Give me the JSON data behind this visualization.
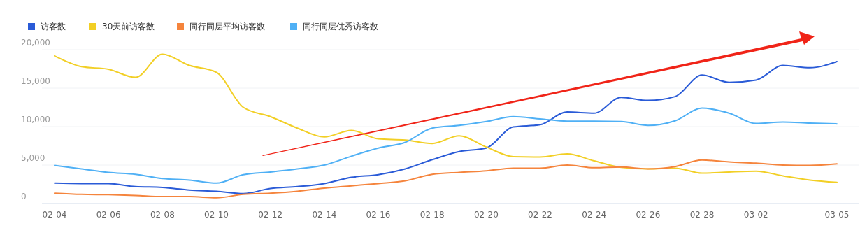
{
  "chart_data": {
    "type": "line",
    "categories": [
      "02-04",
      null,
      "02-06",
      null,
      "02-08",
      null,
      "02-10",
      null,
      "02-12",
      null,
      "02-14",
      null,
      "02-16",
      null,
      "02-18",
      null,
      "02-20",
      null,
      "02-22",
      null,
      "02-24",
      null,
      "02-26",
      null,
      "02-28",
      null,
      "03-02",
      null,
      null,
      "03-05"
    ],
    "series": [
      {
        "name": "访客数",
        "color": "#2a5bd7",
        "values": [
          2650,
          2600,
          2600,
          2200,
          2100,
          1750,
          1600,
          1300,
          1950,
          2200,
          2600,
          3400,
          3750,
          4500,
          5700,
          6750,
          7200,
          9950,
          10250,
          11900,
          11750,
          13800,
          13400,
          13900,
          16700,
          15750,
          16050,
          17950,
          17650,
          18450
        ]
      },
      {
        "name": "30天前访客数",
        "color": "#f2cf25",
        "values": [
          19200,
          17800,
          17450,
          16400,
          19400,
          17950,
          17050,
          12500,
          11300,
          9800,
          8650,
          9500,
          8400,
          8250,
          7800,
          8800,
          7350,
          6100,
          6050,
          6450,
          5550,
          4700,
          4500,
          4600,
          3950,
          4100,
          4200,
          3600,
          3050,
          2750
        ]
      },
      {
        "name": "同行同层平均访客数",
        "color": "#f5843c",
        "values": [
          1350,
          1200,
          1150,
          1050,
          900,
          900,
          750,
          1200,
          1350,
          1600,
          2000,
          2300,
          2600,
          2950,
          3800,
          4050,
          4250,
          4600,
          4600,
          5000,
          4650,
          4750,
          4500,
          4800,
          5650,
          5400,
          5250,
          5000,
          4950,
          5150
        ]
      },
      {
        "name": "同行同层优秀访客数",
        "color": "#4fb0f5",
        "values": [
          4950,
          4500,
          4050,
          3800,
          3250,
          3050,
          2650,
          3750,
          4100,
          4500,
          5000,
          6150,
          7200,
          7950,
          9800,
          10150,
          10650,
          11300,
          11000,
          10700,
          10700,
          10650,
          10150,
          10750,
          12400,
          11750,
          10400,
          10600,
          10450,
          10350
        ]
      }
    ],
    "ylim": [
      0,
      20000
    ],
    "yticks": [
      0,
      {
        "value": 5000,
        "label": "5,000"
      },
      {
        "value": 10000,
        "label": "10,000"
      },
      {
        "value": 15000,
        "label": "15,000"
      },
      {
        "value": 20000,
        "label": "20,000"
      }
    ],
    "grid": "y",
    "legend": "top left",
    "marker": "none",
    "line_style": "solid"
  }
}
